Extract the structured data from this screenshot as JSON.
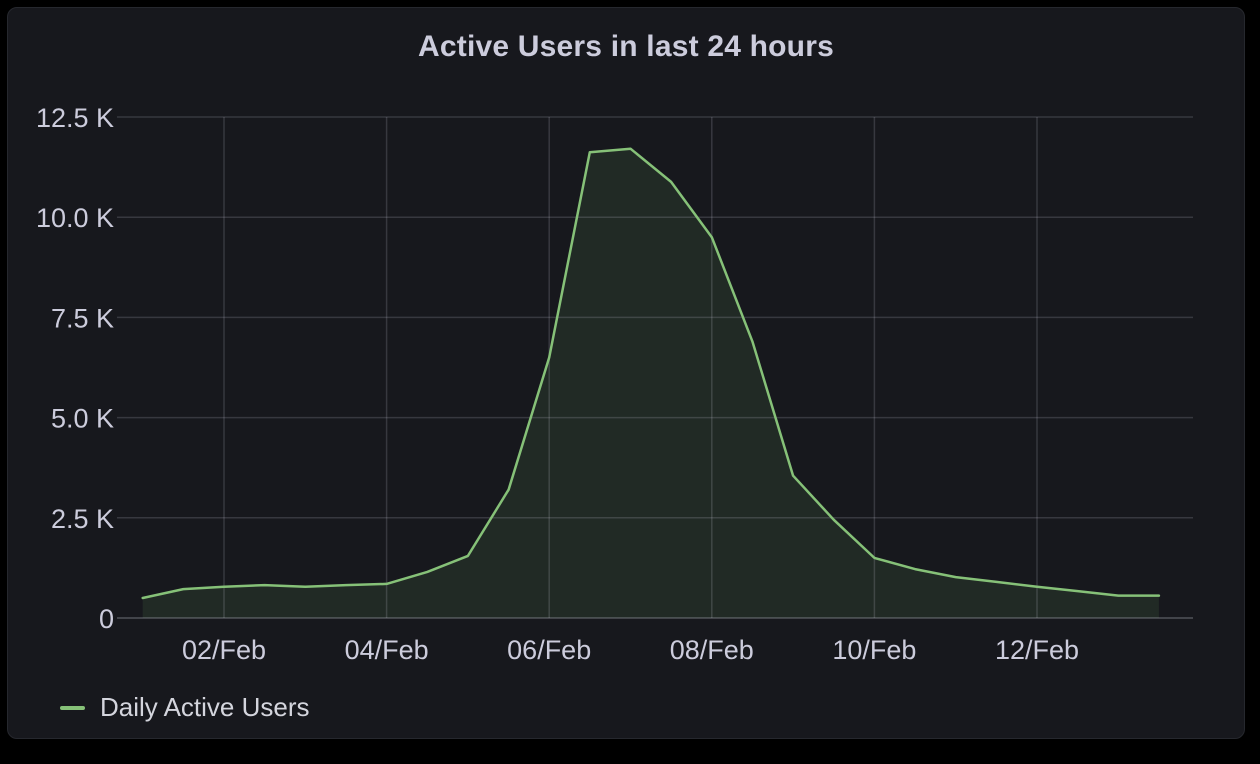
{
  "panel": {
    "title": "Active Users in last 24 hours"
  },
  "legend": {
    "items": [
      {
        "label": "Daily Active Users"
      }
    ]
  },
  "colors": {
    "outer_background": "#000000",
    "panel_background": "#17181d",
    "panel_border": "#26282e",
    "text": "#ccccdc",
    "grid": "rgba(204,204,220,0.18)",
    "axis_baseline": "rgba(204,204,220,0.32)",
    "line": "#86c178",
    "fill": "rgba(115,191,105,0.11)"
  },
  "chart_data": {
    "type": "area",
    "title": "Active Users in last 24 hours",
    "xlabel": "",
    "ylabel": "",
    "x_unit": "date in February, 12-hour sample resolution",
    "y_unit": "users (K = thousands)",
    "ylim_k": [
      0,
      12.5
    ],
    "x_range_days": [
      0.9,
      13.9
    ],
    "grid": true,
    "legend_position": "bottom-left",
    "x_ticks": [
      {
        "day": 2,
        "label": "02/Feb"
      },
      {
        "day": 4,
        "label": "04/Feb"
      },
      {
        "day": 6,
        "label": "06/Feb"
      },
      {
        "day": 8,
        "label": "08/Feb"
      },
      {
        "day": 10,
        "label": "10/Feb"
      },
      {
        "day": 12,
        "label": "12/Feb"
      }
    ],
    "y_ticks": [
      {
        "value_k": 0,
        "label": "0"
      },
      {
        "value_k": 2.5,
        "label": "2.5 K"
      },
      {
        "value_k": 5.0,
        "label": "5.0 K"
      },
      {
        "value_k": 7.5,
        "label": "7.5 K"
      },
      {
        "value_k": 10.0,
        "label": "10.0 K"
      },
      {
        "value_k": 12.5,
        "label": "12.5 K"
      }
    ],
    "series": [
      {
        "name": "Daily Active Users",
        "x_days_feb": [
          1,
          1.5,
          2,
          2.5,
          3,
          3.5,
          4,
          4.5,
          5,
          5.5,
          6,
          6.5,
          7,
          7.5,
          8,
          8.5,
          9,
          9.5,
          10,
          10.5,
          11,
          11.5,
          12,
          12.5,
          13,
          13.5
        ],
        "values_k": [
          0.5,
          0.72,
          0.78,
          0.82,
          0.78,
          0.82,
          0.85,
          1.15,
          1.55,
          3.2,
          6.5,
          11.62,
          11.71,
          10.88,
          9.5,
          6.9,
          3.55,
          2.45,
          1.5,
          1.22,
          1.02,
          0.9,
          0.78,
          0.67,
          0.56,
          0.56
        ]
      }
    ]
  }
}
